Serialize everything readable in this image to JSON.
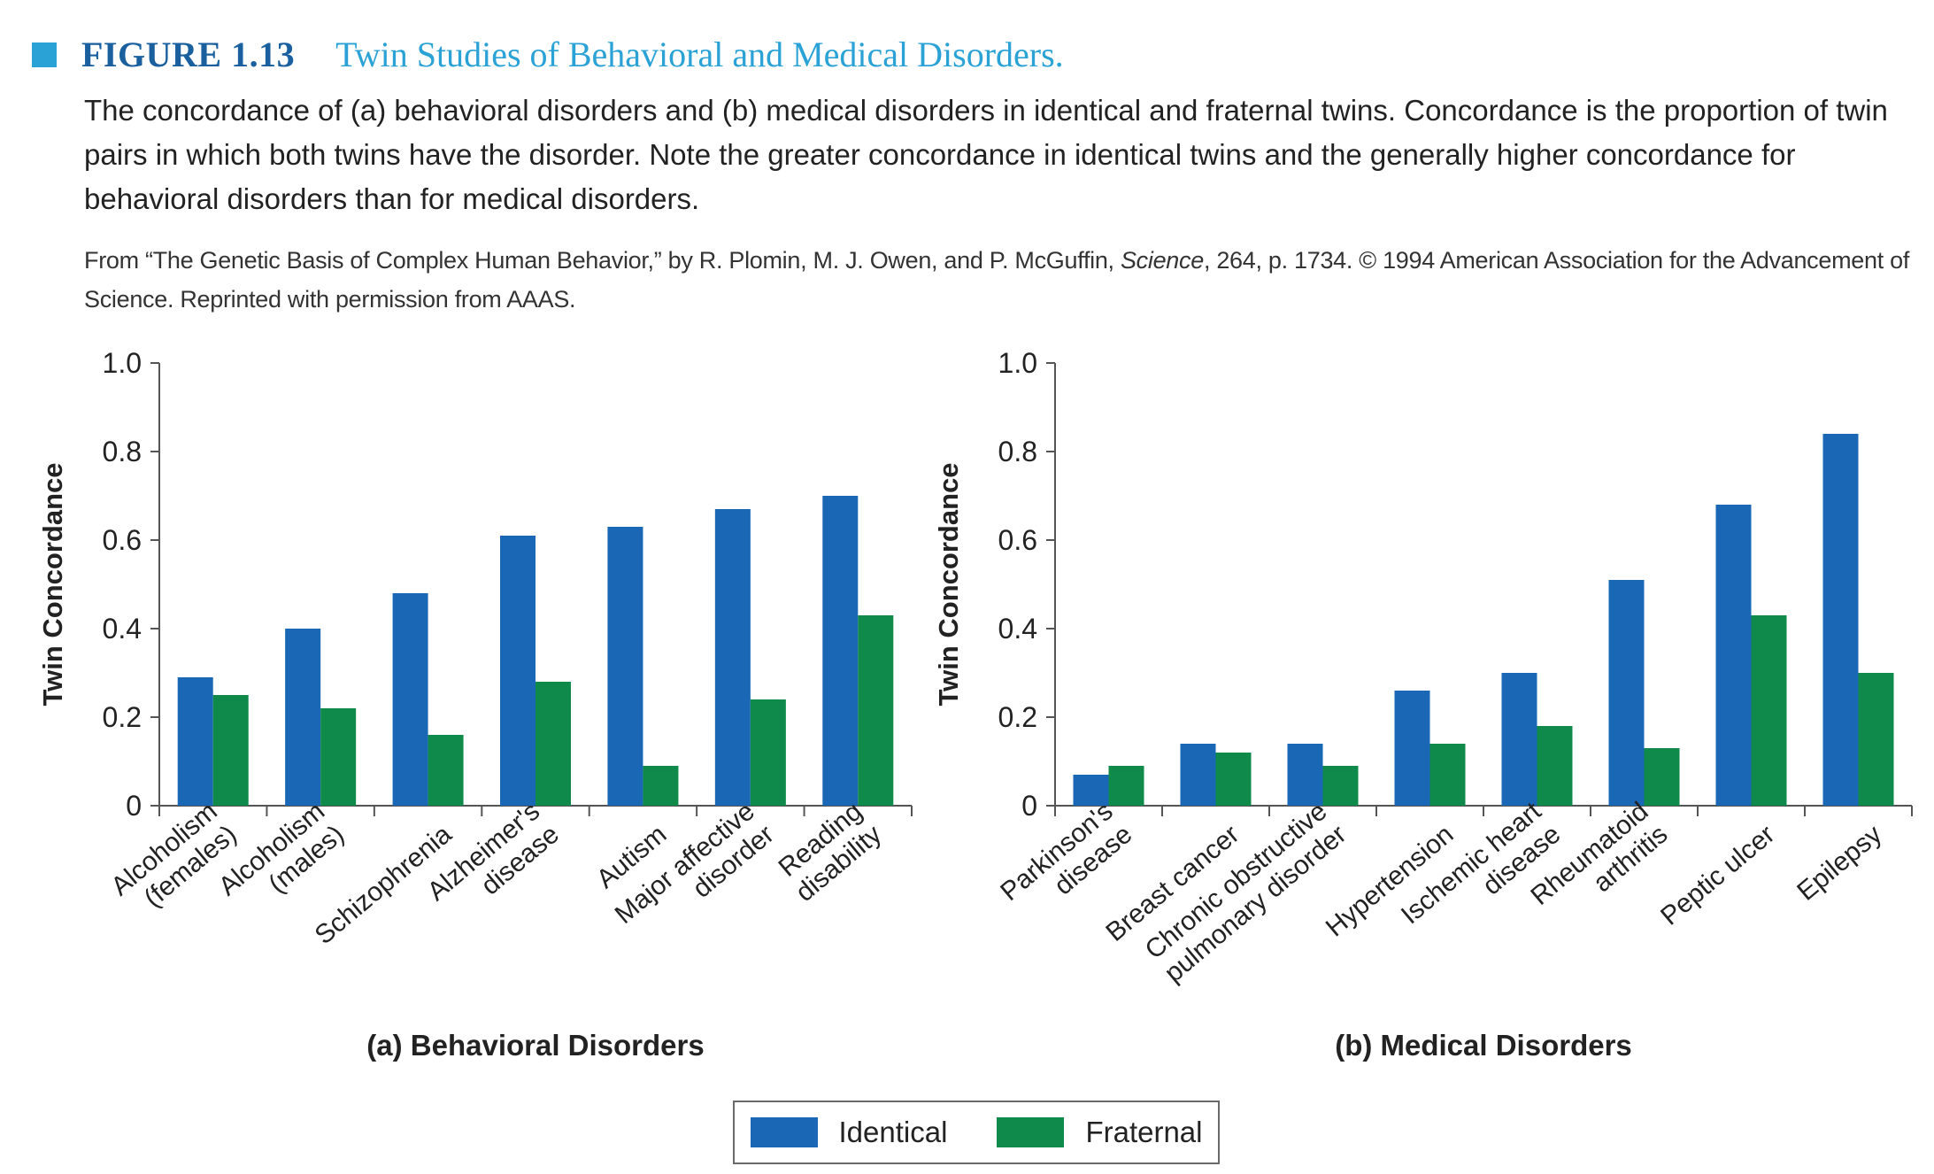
{
  "figure": {
    "label": "FIGURE 1.13",
    "title": "Twin Studies of Behavioral and Medical Disorders.",
    "caption": "The concordance of (a) behavioral disorders and (b) medical disorders in identical and fraternal twins. Concordance is the proportion of twin pairs in which both twins have the disorder. Note the greater concordance in identical twins and the generally higher concordance for behavioral disorders than for medical disorders.",
    "source_pre": "From “The Genetic Basis of Complex Human Behavior,” by R. Plomin, M. J. Owen, and P. McGuffin, ",
    "source_journal": "Science",
    "source_post": ", 264, p. 1734. © 1994 American Association for the Advancement of Science. Reprinted with permission from AAAS."
  },
  "colors": {
    "identical": "#1a67b5",
    "fraternal": "#0f8a4b",
    "accent": "#2aa2d6",
    "label": "#1a5f9e"
  },
  "legend": {
    "identical": "Identical",
    "fraternal": "Fraternal"
  },
  "chart_data": [
    {
      "type": "bar",
      "title": "(a) Behavioral Disorders",
      "ylabel": "Twin Concordance",
      "ylim": [
        0,
        1.0
      ],
      "yticks": [
        "0",
        "0.2",
        "0.4",
        "0.6",
        "0.8",
        "1.0"
      ],
      "categories": [
        [
          "Alcoholism",
          "(females)"
        ],
        [
          "Alcoholism",
          "(males)"
        ],
        [
          "Schizophrenia"
        ],
        [
          "Alzheimer's",
          "disease"
        ],
        [
          "Autism"
        ],
        [
          "Major affective",
          "disorder"
        ],
        [
          "Reading",
          "disability"
        ]
      ],
      "series": [
        {
          "name": "Identical",
          "values": [
            0.29,
            0.4,
            0.48,
            0.61,
            0.63,
            0.67,
            0.7
          ]
        },
        {
          "name": "Fraternal",
          "values": [
            0.25,
            0.22,
            0.16,
            0.28,
            0.09,
            0.24,
            0.43
          ]
        }
      ]
    },
    {
      "type": "bar",
      "title": "(b) Medical Disorders",
      "ylabel": "Twin Concordance",
      "ylim": [
        0,
        1.0
      ],
      "yticks": [
        "0",
        "0.2",
        "0.4",
        "0.6",
        "0.8",
        "1.0"
      ],
      "categories": [
        [
          "Parkinson's",
          "disease"
        ],
        [
          "Breast cancer"
        ],
        [
          "Chronic obstructive",
          "pulmonary disorder"
        ],
        [
          "Hypertension"
        ],
        [
          "Ischemic heart",
          "disease"
        ],
        [
          "Rheumatoid",
          "arthritis"
        ],
        [
          "Peptic ulcer"
        ],
        [
          "Epilepsy"
        ]
      ],
      "series": [
        {
          "name": "Identical",
          "values": [
            0.07,
            0.14,
            0.14,
            0.26,
            0.3,
            0.51,
            0.68,
            0.84
          ]
        },
        {
          "name": "Fraternal",
          "values": [
            0.09,
            0.12,
            0.09,
            0.14,
            0.18,
            0.13,
            0.43,
            0.3
          ]
        }
      ]
    }
  ]
}
